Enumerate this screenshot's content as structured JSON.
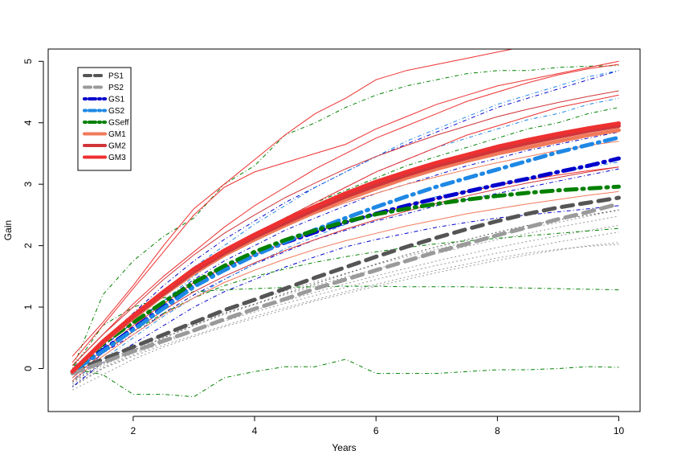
{
  "chart_data": {
    "type": "line",
    "title": "",
    "xlabel": "Years",
    "ylabel": "Gain",
    "xlim": [
      0.6,
      10.35
    ],
    "ylim": [
      -0.7,
      5.2
    ],
    "xticks": [
      2,
      4,
      6,
      8,
      10
    ],
    "yticks": [
      0,
      1,
      2,
      3,
      4,
      5
    ],
    "grid": false,
    "legend_position": "top-left",
    "x": [
      1,
      1.5,
      2,
      2.5,
      3,
      3.5,
      4,
      4.5,
      5,
      5.5,
      6,
      6.5,
      7,
      7.5,
      8,
      8.5,
      9,
      9.5,
      10
    ],
    "series": [
      {
        "name": "PS1",
        "color": "#555555",
        "dash": "dashed",
        "width": 5,
        "values": [
          -0.05,
          0.15,
          0.35,
          0.55,
          0.75,
          0.95,
          1.12,
          1.3,
          1.48,
          1.65,
          1.82,
          1.98,
          2.13,
          2.27,
          2.4,
          2.52,
          2.62,
          2.7,
          2.78
        ]
      },
      {
        "name": "PS2",
        "color": "#9a9a9a",
        "dash": "dashed",
        "width": 5,
        "values": [
          -0.08,
          0.1,
          0.28,
          0.45,
          0.62,
          0.8,
          0.97,
          1.13,
          1.3,
          1.45,
          1.6,
          1.75,
          1.9,
          2.03,
          2.17,
          2.3,
          2.43,
          2.55,
          2.68
        ]
      },
      {
        "name": "GS1",
        "color": "#0000cc",
        "dash": "dotdash",
        "width": 5,
        "values": [
          -0.05,
          0.3,
          0.65,
          1.0,
          1.35,
          1.62,
          1.85,
          2.05,
          2.22,
          2.38,
          2.52,
          2.65,
          2.77,
          2.88,
          2.99,
          3.09,
          3.2,
          3.3,
          3.42
        ]
      },
      {
        "name": "GS2",
        "color": "#1e88e5",
        "dash": "dotdash",
        "width": 5,
        "values": [
          -0.05,
          0.28,
          0.63,
          0.98,
          1.33,
          1.6,
          1.84,
          2.06,
          2.26,
          2.45,
          2.63,
          2.8,
          2.96,
          3.1,
          3.24,
          3.38,
          3.52,
          3.64,
          3.76
        ]
      },
      {
        "name": "GSeff",
        "color": "#008000",
        "dash": "dotdash",
        "width": 5,
        "values": [
          -0.05,
          0.4,
          0.75,
          1.08,
          1.4,
          1.67,
          1.9,
          2.09,
          2.25,
          2.39,
          2.51,
          2.6,
          2.68,
          2.75,
          2.81,
          2.86,
          2.9,
          2.93,
          2.96
        ]
      },
      {
        "name": "GM1",
        "color": "#f07a5a",
        "dash": "solid",
        "width": 5,
        "values": [
          -0.05,
          0.42,
          0.82,
          1.2,
          1.55,
          1.85,
          2.1,
          2.33,
          2.55,
          2.75,
          2.93,
          3.1,
          3.25,
          3.38,
          3.5,
          3.6,
          3.7,
          3.8,
          3.88
        ]
      },
      {
        "name": "GM2",
        "color": "#d0353a",
        "dash": "solid",
        "width": 5,
        "values": [
          -0.05,
          0.43,
          0.84,
          1.22,
          1.58,
          1.88,
          2.14,
          2.37,
          2.59,
          2.8,
          2.98,
          3.15,
          3.3,
          3.43,
          3.56,
          3.67,
          3.77,
          3.87,
          3.95
        ]
      },
      {
        "name": "GM3",
        "color": "#ee3030",
        "dash": "solid",
        "width": 5,
        "values": [
          -0.05,
          0.44,
          0.86,
          1.25,
          1.62,
          1.92,
          2.18,
          2.42,
          2.64,
          2.85,
          3.04,
          3.2,
          3.35,
          3.48,
          3.61,
          3.72,
          3.82,
          3.91,
          3.99
        ]
      }
    ],
    "background_series": [
      {
        "color": "#999999",
        "dash": "dotted",
        "values": [
          -0.35,
          -0.1,
          0.15,
          0.35,
          0.52,
          0.68,
          0.82,
          0.96,
          1.1,
          1.22,
          1.34,
          1.45,
          1.56,
          1.66,
          1.76,
          1.85,
          1.93,
          2.0,
          2.05
        ]
      },
      {
        "color": "#999999",
        "dash": "dotted",
        "values": [
          -0.3,
          0.0,
          0.22,
          0.42,
          0.6,
          0.77,
          0.92,
          1.06,
          1.19,
          1.32,
          1.45,
          1.57,
          1.68,
          1.78,
          1.88,
          1.97,
          2.06,
          2.14,
          2.22
        ]
      },
      {
        "color": "#999999",
        "dash": "dotted",
        "values": [
          -0.25,
          0.05,
          0.28,
          0.5,
          0.7,
          0.88,
          1.04,
          1.2,
          1.35,
          1.49,
          1.62,
          1.75,
          1.87,
          1.99,
          2.1,
          2.2,
          2.3,
          2.39,
          2.48
        ]
      },
      {
        "color": "#999999",
        "dash": "dotted",
        "values": [
          -0.3,
          0.02,
          0.25,
          0.45,
          0.63,
          0.8,
          0.95,
          1.1,
          1.24,
          1.38,
          1.51,
          1.63,
          1.75,
          1.86,
          1.97,
          2.07,
          2.16,
          2.25,
          2.33
        ]
      },
      {
        "color": "#999999",
        "dash": "dotted",
        "values": [
          -0.2,
          0.1,
          0.33,
          0.55,
          0.75,
          0.93,
          1.1,
          1.26,
          1.41,
          1.55,
          1.69,
          1.82,
          1.94,
          2.06,
          2.17,
          2.28,
          2.38,
          2.48,
          2.58
        ]
      },
      {
        "color": "#999999",
        "dash": "dotted",
        "values": [
          -0.28,
          0.0,
          0.2,
          0.38,
          0.54,
          0.7,
          0.85,
          0.99,
          1.12,
          1.25,
          1.37,
          1.49,
          1.6,
          1.7,
          1.8,
          1.88,
          1.94,
          1.99,
          2.02
        ]
      },
      {
        "color": "#555555",
        "dash": "dotted",
        "values": [
          -0.22,
          0.08,
          0.3,
          0.5,
          0.7,
          0.9,
          1.05,
          1.22,
          1.38,
          1.54,
          1.7,
          1.85,
          1.98,
          2.1,
          2.22,
          2.33,
          2.42,
          2.5,
          2.58
        ]
      },
      {
        "color": "#0000cc",
        "dash": "dotdash",
        "values": [
          -0.2,
          0.25,
          0.55,
          0.9,
          1.2,
          1.45,
          1.7,
          1.9,
          2.1,
          2.25,
          2.4,
          2.52,
          2.65,
          2.75,
          2.85,
          2.95,
          3.05,
          3.15,
          3.25
        ]
      },
      {
        "color": "#0000cc",
        "dash": "dotdash",
        "values": [
          0.0,
          0.45,
          0.9,
          1.35,
          1.75,
          2.1,
          2.4,
          2.7,
          2.95,
          3.2,
          3.45,
          3.65,
          3.85,
          4.05,
          4.25,
          4.4,
          4.55,
          4.7,
          4.85
        ]
      },
      {
        "color": "#0000cc",
        "dash": "dotdash",
        "values": [
          -0.3,
          0.1,
          0.4,
          0.7,
          1.0,
          1.25,
          1.45,
          1.65,
          1.82,
          1.98,
          2.1,
          2.2,
          2.3,
          2.38,
          2.45,
          2.5,
          2.55,
          2.6,
          2.65
        ]
      },
      {
        "color": "#0000cc",
        "dash": "dotdash",
        "values": [
          -0.1,
          0.35,
          0.75,
          1.1,
          1.45,
          1.75,
          2.0,
          2.25,
          2.45,
          2.65,
          2.85,
          3.0,
          3.15,
          3.3,
          3.42,
          3.55,
          3.65,
          3.75,
          3.85
        ]
      },
      {
        "color": "#1e88e5",
        "dash": "dotdash",
        "values": [
          -0.1,
          0.3,
          0.7,
          1.1,
          1.5,
          1.85,
          2.15,
          2.45,
          2.7,
          2.95,
          3.2,
          3.4,
          3.6,
          3.75,
          3.9,
          4.05,
          4.15,
          4.3,
          4.4
        ]
      },
      {
        "color": "#1e88e5",
        "dash": "dotdash",
        "values": [
          -0.2,
          0.15,
          0.5,
          0.85,
          1.15,
          1.45,
          1.7,
          1.95,
          2.15,
          2.35,
          2.5,
          2.65,
          2.8,
          2.9,
          3.0,
          3.1,
          3.2,
          3.28,
          3.36
        ]
      },
      {
        "color": "#1e88e5",
        "dash": "dotdash",
        "values": [
          0.0,
          0.4,
          0.85,
          1.25,
          1.65,
          2.0,
          2.35,
          2.65,
          2.95,
          3.2,
          3.45,
          3.7,
          3.9,
          4.1,
          4.3,
          4.45,
          4.6,
          4.75,
          4.85
        ]
      },
      {
        "color": "#008000",
        "dash": "dotdash",
        "values": [
          0.0,
          1.2,
          1.75,
          2.15,
          2.45,
          3.0,
          3.3,
          3.8,
          4.0,
          4.25,
          4.45,
          4.6,
          4.7,
          4.8,
          4.85,
          4.85,
          4.9,
          4.92,
          4.93
        ]
      },
      {
        "color": "#008000",
        "dash": "dotdash",
        "values": [
          0.0,
          0.7,
          1.0,
          1.15,
          1.25,
          1.28,
          1.3,
          1.32,
          1.33,
          1.34,
          1.34,
          1.33,
          1.33,
          1.33,
          1.32,
          1.31,
          1.3,
          1.29,
          1.28
        ]
      },
      {
        "color": "#008000",
        "dash": "dotdash",
        "values": [
          0.0,
          -0.1,
          -0.42,
          -0.42,
          -0.46,
          -0.15,
          -0.05,
          0.03,
          0.03,
          0.15,
          -0.08,
          -0.08,
          -0.08,
          -0.05,
          -0.02,
          -0.02,
          0.0,
          0.03,
          0.02
        ]
      },
      {
        "color": "#008000",
        "dash": "dotdash",
        "values": [
          -0.1,
          0.3,
          0.6,
          0.9,
          1.15,
          1.35,
          1.5,
          1.62,
          1.73,
          1.82,
          1.9,
          1.97,
          2.03,
          2.08,
          2.12,
          2.16,
          2.2,
          2.24,
          2.28
        ]
      },
      {
        "color": "#008000",
        "dash": "dotdash",
        "values": [
          -0.05,
          0.45,
          0.85,
          1.25,
          1.6,
          1.9,
          2.2,
          2.45,
          2.7,
          2.9,
          3.1,
          3.3,
          3.45,
          3.6,
          3.75,
          3.9,
          4.0,
          4.15,
          4.25
        ]
      },
      {
        "color": "#ee3030",
        "dash": "solid",
        "values": [
          0.1,
          0.7,
          1.3,
          1.9,
          2.5,
          2.95,
          3.2,
          3.35,
          3.5,
          3.65,
          3.9,
          4.1,
          4.3,
          4.45,
          4.6,
          4.7,
          4.8,
          4.9,
          5.0
        ]
      },
      {
        "color": "#ee3030",
        "dash": "solid",
        "values": [
          0.2,
          0.75,
          1.35,
          2.0,
          2.6,
          3.0,
          3.4,
          3.8,
          4.15,
          4.4,
          4.7,
          4.85,
          4.95,
          5.05,
          5.15,
          5.25,
          5.35,
          5.45,
          5.55
        ]
      },
      {
        "color": "#ee3030",
        "dash": "solid",
        "values": [
          0.0,
          0.4,
          0.8,
          1.2,
          1.6,
          1.9,
          2.2,
          2.45,
          2.7,
          2.95,
          3.2,
          3.4,
          3.6,
          3.8,
          3.95,
          4.1,
          4.25,
          4.35,
          4.45
        ]
      },
      {
        "color": "#ee3030",
        "dash": "solid",
        "values": [
          -0.1,
          0.3,
          0.7,
          1.05,
          1.4,
          1.65,
          1.85,
          2.05,
          2.22,
          2.38,
          2.52,
          2.65,
          2.77,
          2.88,
          2.98,
          3.07,
          3.15,
          3.22,
          3.28
        ]
      },
      {
        "color": "#ee3030",
        "dash": "solid",
        "values": [
          0.05,
          0.55,
          1.05,
          1.5,
          1.9,
          2.3,
          2.65,
          2.95,
          3.25,
          3.5,
          3.75,
          3.95,
          4.15,
          4.35,
          4.5,
          4.65,
          4.78,
          4.88,
          4.95
        ]
      },
      {
        "color": "#d0353a",
        "dash": "solid",
        "values": [
          -0.15,
          0.25,
          0.6,
          0.95,
          1.25,
          1.5,
          1.72,
          1.92,
          2.1,
          2.27,
          2.42,
          2.56,
          2.69,
          2.81,
          2.92,
          3.02,
          3.11,
          3.2,
          3.28
        ]
      },
      {
        "color": "#d0353a",
        "dash": "solid",
        "values": [
          0.05,
          0.55,
          1.0,
          1.45,
          1.85,
          2.2,
          2.5,
          2.78,
          3.02,
          3.25,
          3.45,
          3.63,
          3.8,
          3.95,
          4.1,
          4.22,
          4.33,
          4.43,
          4.52
        ]
      },
      {
        "color": "#f07a5a",
        "dash": "solid",
        "values": [
          -0.05,
          0.4,
          0.8,
          1.2,
          1.55,
          1.85,
          2.1,
          2.32,
          2.52,
          2.7,
          2.85,
          3.0,
          3.12,
          3.24,
          3.35,
          3.45,
          3.55,
          3.63,
          3.7
        ]
      },
      {
        "color": "#f07a5a",
        "dash": "solid",
        "values": [
          -0.2,
          0.2,
          0.55,
          0.88,
          1.15,
          1.4,
          1.6,
          1.78,
          1.94,
          2.08,
          2.2,
          2.32,
          2.42,
          2.52,
          2.6,
          2.68,
          2.75,
          2.82,
          2.88
        ]
      }
    ]
  }
}
